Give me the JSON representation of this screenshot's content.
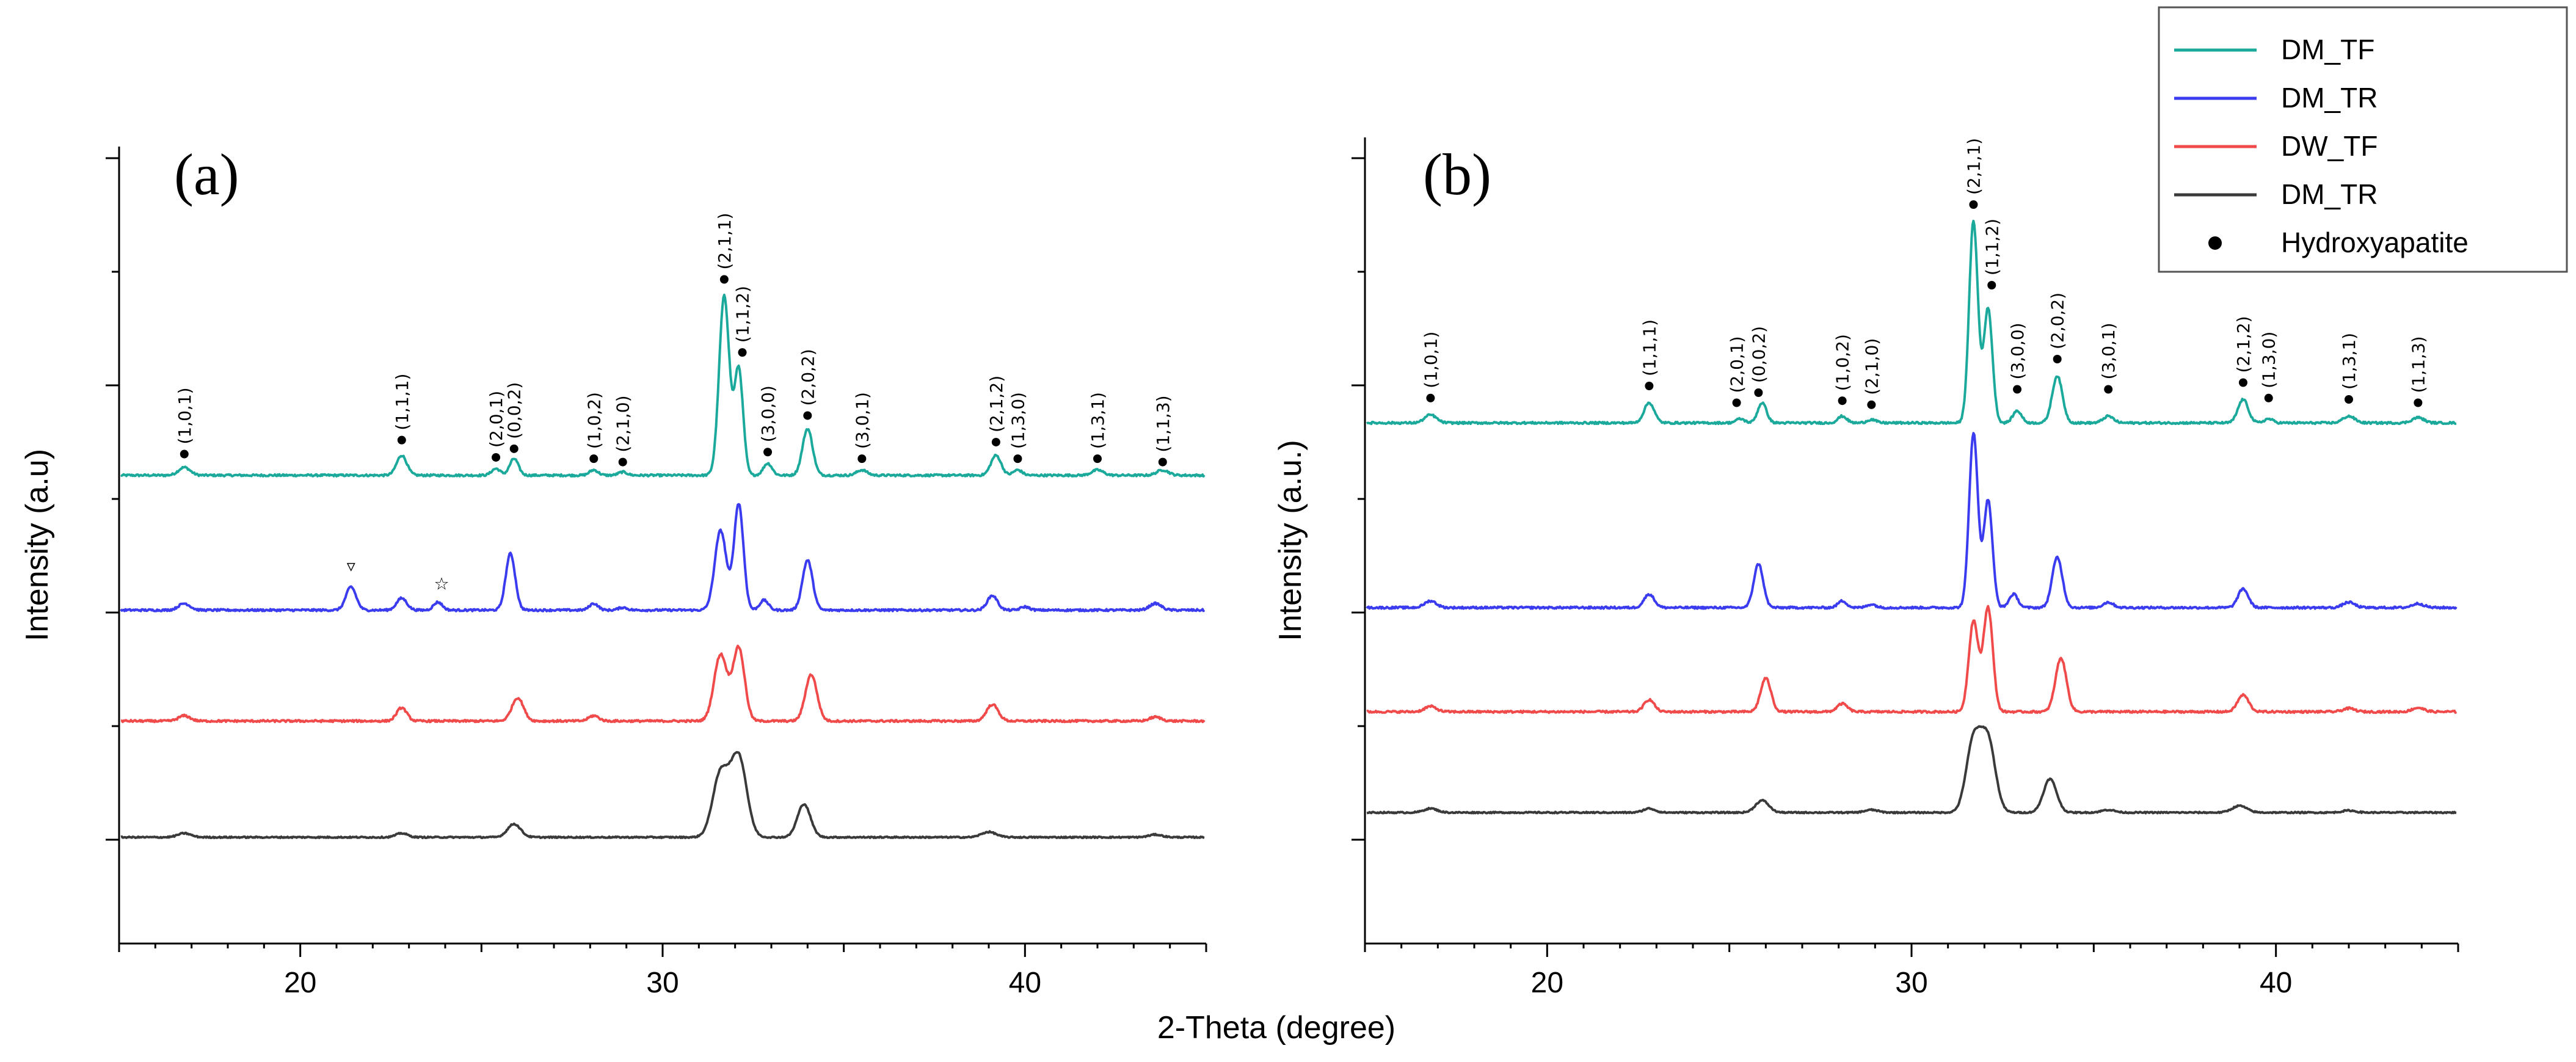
{
  "chart_data": {
    "type": "line",
    "xlabel": "2-Theta (degree)",
    "xlim": [
      15,
      45
    ],
    "x_ticks": [
      20,
      30,
      40
    ],
    "legend": {
      "placement": "top-right",
      "entries": [
        {
          "label": "DM_TF",
          "color": "#1aa99a",
          "marker": "line"
        },
        {
          "label": "DM_TR",
          "color": "#3b3bf0",
          "marker": "line"
        },
        {
          "label": "DW_TF",
          "color": "#f04a4a",
          "marker": "line"
        },
        {
          "label": "DM_TR",
          "color": "#3a3a3a",
          "marker": "line"
        },
        {
          "label": "Hydroxyapatite",
          "color": "#000000",
          "marker": "dot"
        }
      ]
    },
    "panels": [
      {
        "label": "(a)",
        "ylabel": "Intensity (a.u)",
        "ylim": [
          -1,
          11
        ],
        "series": [
          {
            "name": "DM_TF",
            "color": "#1aa99a",
            "baseline": 6.05,
            "noise": 0.03,
            "peaks": [
              [
                16.8,
                0.12,
                0.16
              ],
              [
                22.8,
                0.3,
                0.14
              ],
              [
                25.4,
                0.1,
                0.12
              ],
              [
                25.9,
                0.25,
                0.12
              ],
              [
                28.1,
                0.08,
                0.12
              ],
              [
                28.9,
                0.05,
                0.12
              ],
              [
                31.7,
                2.7,
                0.14
              ],
              [
                32.1,
                1.6,
                0.12
              ],
              [
                32.9,
                0.18,
                0.12
              ],
              [
                34.0,
                0.7,
                0.14
              ],
              [
                35.5,
                0.08,
                0.14
              ],
              [
                39.2,
                0.3,
                0.14
              ],
              [
                39.8,
                0.08,
                0.12
              ],
              [
                42.0,
                0.08,
                0.16
              ],
              [
                43.8,
                0.08,
                0.16
              ]
            ]
          },
          {
            "name": "DM_TR",
            "color": "#3b3bf0",
            "baseline": 4.02,
            "noise": 0.03,
            "peaks": [
              [
                16.8,
                0.1,
                0.16
              ],
              [
                21.4,
                0.35,
                0.14
              ],
              [
                22.8,
                0.18,
                0.14
              ],
              [
                23.8,
                0.12,
                0.12
              ],
              [
                25.8,
                0.85,
                0.13
              ],
              [
                28.1,
                0.1,
                0.12
              ],
              [
                28.9,
                0.04,
                0.12
              ],
              [
                31.6,
                1.2,
                0.16
              ],
              [
                32.1,
                1.6,
                0.13
              ],
              [
                32.8,
                0.15,
                0.12
              ],
              [
                34.0,
                0.75,
                0.14
              ],
              [
                39.1,
                0.22,
                0.14
              ],
              [
                40.0,
                0.05,
                0.12
              ],
              [
                43.6,
                0.1,
                0.16
              ]
            ]
          },
          {
            "name": "DW_TF",
            "color": "#f04a4a",
            "baseline": 2.35,
            "noise": 0.03,
            "peaks": [
              [
                16.8,
                0.08,
                0.16
              ],
              [
                22.8,
                0.2,
                0.14
              ],
              [
                26.0,
                0.35,
                0.16
              ],
              [
                28.1,
                0.08,
                0.14
              ],
              [
                31.6,
                1.0,
                0.18
              ],
              [
                32.1,
                1.1,
                0.16
              ],
              [
                34.1,
                0.7,
                0.16
              ],
              [
                39.1,
                0.25,
                0.16
              ],
              [
                43.6,
                0.06,
                0.16
              ]
            ]
          },
          {
            "name": "DM_TR",
            "color": "#3a3a3a",
            "baseline": 0.6,
            "noise": 0.02,
            "peaks": [
              [
                16.8,
                0.06,
                0.18
              ],
              [
                22.8,
                0.06,
                0.16
              ],
              [
                25.9,
                0.2,
                0.18
              ],
              [
                31.6,
                0.95,
                0.22
              ],
              [
                32.1,
                1.2,
                0.22
              ],
              [
                33.9,
                0.5,
                0.18
              ],
              [
                39.0,
                0.08,
                0.2
              ],
              [
                43.6,
                0.04,
                0.18
              ]
            ]
          }
        ],
        "peak_labels": [
          {
            "hkl": "(1,0,1)",
            "x": 16.8,
            "y": 6.37
          },
          {
            "hkl": "(1,1,1)",
            "x": 22.8,
            "y": 6.58
          },
          {
            "hkl": "(2,0,1)",
            "x": 25.4,
            "y": 6.32
          },
          {
            "hkl": "(0,0,2)",
            "x": 25.9,
            "y": 6.45
          },
          {
            "hkl": "(1,0,2)",
            "x": 28.1,
            "y": 6.3
          },
          {
            "hkl": "(2,1,0)",
            "x": 28.9,
            "y": 6.25
          },
          {
            "hkl": "(2,1,1)",
            "x": 31.7,
            "y": 9.0
          },
          {
            "hkl": "(1,1,2)",
            "x": 32.2,
            "y": 7.9
          },
          {
            "hkl": "(3,0,0)",
            "x": 32.9,
            "y": 6.4
          },
          {
            "hkl": "(2,0,2)",
            "x": 34.0,
            "y": 6.95
          },
          {
            "hkl": "(3,0,1)",
            "x": 35.5,
            "y": 6.3
          },
          {
            "hkl": "(2,1,2)",
            "x": 39.2,
            "y": 6.55
          },
          {
            "hkl": "(1,3,0)",
            "x": 39.8,
            "y": 6.3
          },
          {
            "hkl": "(1,3,1)",
            "x": 42.0,
            "y": 6.3
          },
          {
            "hkl": "(1,1,3)",
            "x": 43.8,
            "y": 6.25
          }
        ],
        "annotations": [
          {
            "symbol": "▿",
            "x": 21.4,
            "y": 4.6
          },
          {
            "symbol": "☆",
            "x": 23.9,
            "y": 4.33
          }
        ]
      },
      {
        "label": "(b)",
        "ylabel": "Intensity (a.u.)",
        "ylim": [
          -1,
          11
        ],
        "series": [
          {
            "name": "DM_TF",
            "color": "#1aa99a",
            "baseline": 6.75,
            "noise": 0.03,
            "peaks": [
              [
                16.8,
                0.12,
                0.16
              ],
              [
                22.8,
                0.3,
                0.14
              ],
              [
                25.3,
                0.06,
                0.12
              ],
              [
                25.9,
                0.3,
                0.12
              ],
              [
                28.1,
                0.1,
                0.12
              ],
              [
                28.9,
                0.05,
                0.12
              ],
              [
                31.7,
                3.0,
                0.12
              ],
              [
                32.1,
                1.7,
                0.12
              ],
              [
                32.9,
                0.18,
                0.12
              ],
              [
                34.0,
                0.7,
                0.14
              ],
              [
                35.4,
                0.1,
                0.14
              ],
              [
                39.1,
                0.35,
                0.14
              ],
              [
                39.8,
                0.06,
                0.12
              ],
              [
                42.0,
                0.1,
                0.16
              ],
              [
                43.9,
                0.08,
                0.16
              ]
            ]
          },
          {
            "name": "DM_TR",
            "color": "#3b3bf0",
            "baseline": 4.0,
            "noise": 0.03,
            "peaks": [
              [
                16.8,
                0.1,
                0.16
              ],
              [
                22.8,
                0.2,
                0.14
              ],
              [
                25.8,
                0.65,
                0.13
              ],
              [
                28.1,
                0.1,
                0.12
              ],
              [
                28.9,
                0.05,
                0.12
              ],
              [
                31.7,
                2.6,
                0.12
              ],
              [
                32.1,
                1.6,
                0.12
              ],
              [
                32.8,
                0.2,
                0.12
              ],
              [
                34.0,
                0.75,
                0.14
              ],
              [
                35.4,
                0.08,
                0.14
              ],
              [
                39.1,
                0.28,
                0.14
              ],
              [
                42.0,
                0.08,
                0.16
              ],
              [
                43.9,
                0.06,
                0.16
              ]
            ]
          },
          {
            "name": "DW_TF",
            "color": "#f04a4a",
            "baseline": 2.45,
            "noise": 0.03,
            "peaks": [
              [
                16.8,
                0.08,
                0.16
              ],
              [
                22.8,
                0.18,
                0.14
              ],
              [
                26.0,
                0.5,
                0.14
              ],
              [
                28.1,
                0.12,
                0.14
              ],
              [
                31.7,
                1.35,
                0.13
              ],
              [
                32.1,
                1.55,
                0.13
              ],
              [
                34.1,
                0.8,
                0.15
              ],
              [
                39.1,
                0.25,
                0.15
              ],
              [
                42.0,
                0.05,
                0.16
              ],
              [
                43.9,
                0.06,
                0.16
              ]
            ]
          },
          {
            "name": "DM_TR",
            "color": "#3a3a3a",
            "baseline": 0.95,
            "noise": 0.02,
            "peaks": [
              [
                16.8,
                0.06,
                0.18
              ],
              [
                22.8,
                0.06,
                0.16
              ],
              [
                25.9,
                0.18,
                0.18
              ],
              [
                28.9,
                0.04,
                0.18
              ],
              [
                31.7,
                1.05,
                0.2
              ],
              [
                32.1,
                1.05,
                0.2
              ],
              [
                33.8,
                0.5,
                0.18
              ],
              [
                35.4,
                0.04,
                0.18
              ],
              [
                39.0,
                0.1,
                0.2
              ],
              [
                42.0,
                0.03,
                0.18
              ]
            ]
          }
        ],
        "peak_labels": [
          {
            "hkl": "(1,0,1)",
            "x": 16.8,
            "y": 7.12
          },
          {
            "hkl": "(1,1,1)",
            "x": 22.8,
            "y": 7.3
          },
          {
            "hkl": "(2,0,1)",
            "x": 25.2,
            "y": 7.05
          },
          {
            "hkl": "(0,0,2)",
            "x": 25.8,
            "y": 7.2
          },
          {
            "hkl": "(1,0,2)",
            "x": 28.1,
            "y": 7.08
          },
          {
            "hkl": "(2,1,0)",
            "x": 28.9,
            "y": 7.02
          },
          {
            "hkl": "(2,1,1)",
            "x": 31.7,
            "y": 10.0
          },
          {
            "hkl": "(1,1,2)",
            "x": 32.2,
            "y": 8.8
          },
          {
            "hkl": "(3,0,0)",
            "x": 32.9,
            "y": 7.25
          },
          {
            "hkl": "(2,0,2)",
            "x": 34.0,
            "y": 7.7
          },
          {
            "hkl": "(3,0,1)",
            "x": 35.4,
            "y": 7.25
          },
          {
            "hkl": "(2,1,2)",
            "x": 39.1,
            "y": 7.35
          },
          {
            "hkl": "(1,3,0)",
            "x": 39.8,
            "y": 7.12
          },
          {
            "hkl": "(1,3,1)",
            "x": 42.0,
            "y": 7.1
          },
          {
            "hkl": "(1,1,3)",
            "x": 43.9,
            "y": 7.05
          }
        ],
        "annotations": []
      }
    ]
  }
}
